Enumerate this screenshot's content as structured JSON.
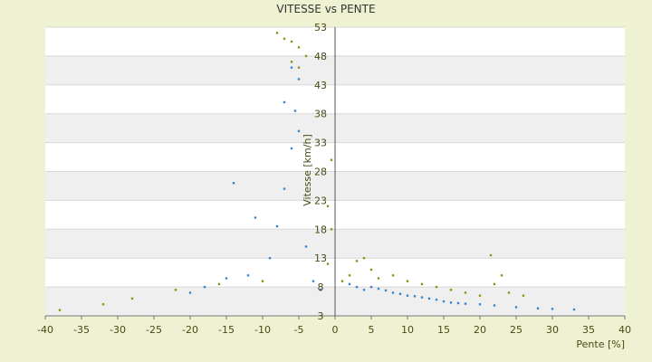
{
  "chart_data": {
    "type": "scatter",
    "title": "VITESSE vs PENTE",
    "xlabel": "Pente [%]",
    "ylabel": "Vitesse [km/h]",
    "xlim": [
      -40,
      40
    ],
    "ylim": [
      3,
      53
    ],
    "xticks": [
      -40,
      -35,
      -30,
      -25,
      -20,
      -15,
      -10,
      -5,
      0,
      5,
      10,
      15,
      20,
      25,
      30,
      35,
      40
    ],
    "yticks": [
      3,
      8,
      13,
      18,
      23,
      28,
      33,
      38,
      43,
      48,
      53
    ],
    "grid": true,
    "legend": "none",
    "colors": {
      "blue_series": "#3a86d0",
      "olive_series": "#8f9418",
      "plot_background": "#ffffff",
      "band_background": "#efefef",
      "page_background": "#eef2d2"
    },
    "series": [
      {
        "color": "#3a86d0",
        "description_points": [
          [
            -9.0,
            13.0
          ],
          [
            -8.0,
            18.5
          ],
          [
            -7.0,
            25.0
          ],
          [
            -6.0,
            32.0
          ],
          [
            -5.5,
            38.5
          ],
          [
            -5.0,
            44.0
          ],
          [
            -6.0,
            46.0
          ],
          [
            -12.0,
            10.0
          ],
          [
            -15.0,
            9.5
          ],
          [
            -18.0,
            8.0
          ],
          [
            -20.0,
            7.0
          ],
          [
            -3.0,
            9.0
          ],
          [
            -2.0,
            7.5
          ],
          [
            -4.0,
            15.0
          ],
          [
            -11.0,
            20.0
          ],
          [
            -14.0,
            26.0
          ],
          [
            -7.0,
            40.0
          ],
          [
            -5.0,
            35.0
          ],
          [
            2.0,
            8.5
          ],
          [
            3.0,
            8.0
          ],
          [
            4.0,
            7.5
          ],
          [
            5.0,
            8.0
          ],
          [
            6.0,
            7.7
          ],
          [
            7.0,
            7.4
          ],
          [
            8.0,
            7.0
          ],
          [
            9.0,
            6.8
          ],
          [
            10.0,
            6.5
          ],
          [
            11.0,
            6.4
          ],
          [
            12.0,
            6.2
          ],
          [
            13.0,
            6.0
          ],
          [
            14.0,
            5.8
          ],
          [
            15.0,
            5.5
          ],
          [
            16.0,
            5.3
          ],
          [
            17.0,
            5.2
          ],
          [
            18.0,
            5.1
          ],
          [
            20.0,
            5.0
          ],
          [
            22.0,
            4.8
          ],
          [
            25.0,
            4.5
          ],
          [
            28.0,
            4.3
          ],
          [
            30.0,
            4.2
          ],
          [
            33.0,
            4.1
          ]
        ]
      },
      {
        "color": "#8f9418",
        "description_points": [
          [
            -8.0,
            52.0
          ],
          [
            -7.0,
            51.0
          ],
          [
            -6.0,
            50.5
          ],
          [
            -5.0,
            49.5
          ],
          [
            -4.0,
            48.0
          ],
          [
            -6.0,
            47.0
          ],
          [
            -5.0,
            46.0
          ],
          [
            -10.0,
            9.0
          ],
          [
            -16.0,
            8.5
          ],
          [
            -22.0,
            7.5
          ],
          [
            -28.0,
            6.0
          ],
          [
            -32.0,
            5.0
          ],
          [
            -38.0,
            4.0
          ],
          [
            1.0,
            9.0
          ],
          [
            2.0,
            10.0
          ],
          [
            3.0,
            12.5
          ],
          [
            4.0,
            13.0
          ],
          [
            5.0,
            11.0
          ],
          [
            6.0,
            9.5
          ],
          [
            8.0,
            10.0
          ],
          [
            10.0,
            9.0
          ],
          [
            12.0,
            8.5
          ],
          [
            14.0,
            8.0
          ],
          [
            16.0,
            7.5
          ],
          [
            18.0,
            7.0
          ],
          [
            20.0,
            6.5
          ],
          [
            21.5,
            13.5
          ],
          [
            22.0,
            8.5
          ],
          [
            23.0,
            10.0
          ],
          [
            24.0,
            7.0
          ],
          [
            26.0,
            6.5
          ],
          [
            -0.5,
            18.0
          ],
          [
            -0.5,
            30.0
          ],
          [
            -1.0,
            22.0
          ],
          [
            -1.0,
            12.0
          ]
        ]
      }
    ]
  }
}
